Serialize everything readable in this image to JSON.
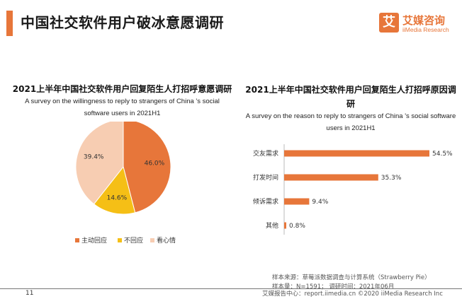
{
  "page": {
    "title": "中国社交软件用户破冰意愿调研",
    "page_number": "11",
    "footer": "艾媒报告中心：report.iimedia.cn  ©2020  iiMedia Research  Inc",
    "source": "样本来源：草莓派数据调查与计算系统（Strawberry Pie）",
    "sample": "样本量：N=1591；  调研时间：2021年06月"
  },
  "logo": {
    "mark": "艾",
    "name_cn": "艾媒咨询",
    "name_en": "iiMedia Research",
    "color": "#e7763a"
  },
  "chart_data": [
    {
      "type": "pie",
      "title": "2021上半年中国社交软件用户回复陌生人打招呼意愿调研",
      "subtitle": "A survey on the willingness to reply to strangers  of China 's social software users in 2021H1",
      "labels": [
        "主动回应",
        "不回应",
        "看心情"
      ],
      "values": [
        46.0,
        14.6,
        39.4
      ],
      "value_labels": [
        "46.0%",
        "14.6%",
        "39.4%"
      ],
      "colors": [
        "#e7763a",
        "#f5bf16",
        "#f7cdb2"
      ],
      "legend": "bottom"
    },
    {
      "type": "bar",
      "orientation": "horizontal",
      "title": "2021上半年中国社交软件用户回复陌生人打招呼原因调研",
      "subtitle": "A survey on the reason to reply to strangers  of China 's social software users in 2021H1",
      "categories": [
        "交友需求",
        "打发时间",
        "倾诉需求",
        "其他"
      ],
      "values": [
        54.5,
        35.3,
        9.4,
        0.8
      ],
      "value_labels": [
        "54.5%",
        "35.3%",
        "9.4%",
        "0.8%"
      ],
      "color": "#e7763a"
    }
  ]
}
